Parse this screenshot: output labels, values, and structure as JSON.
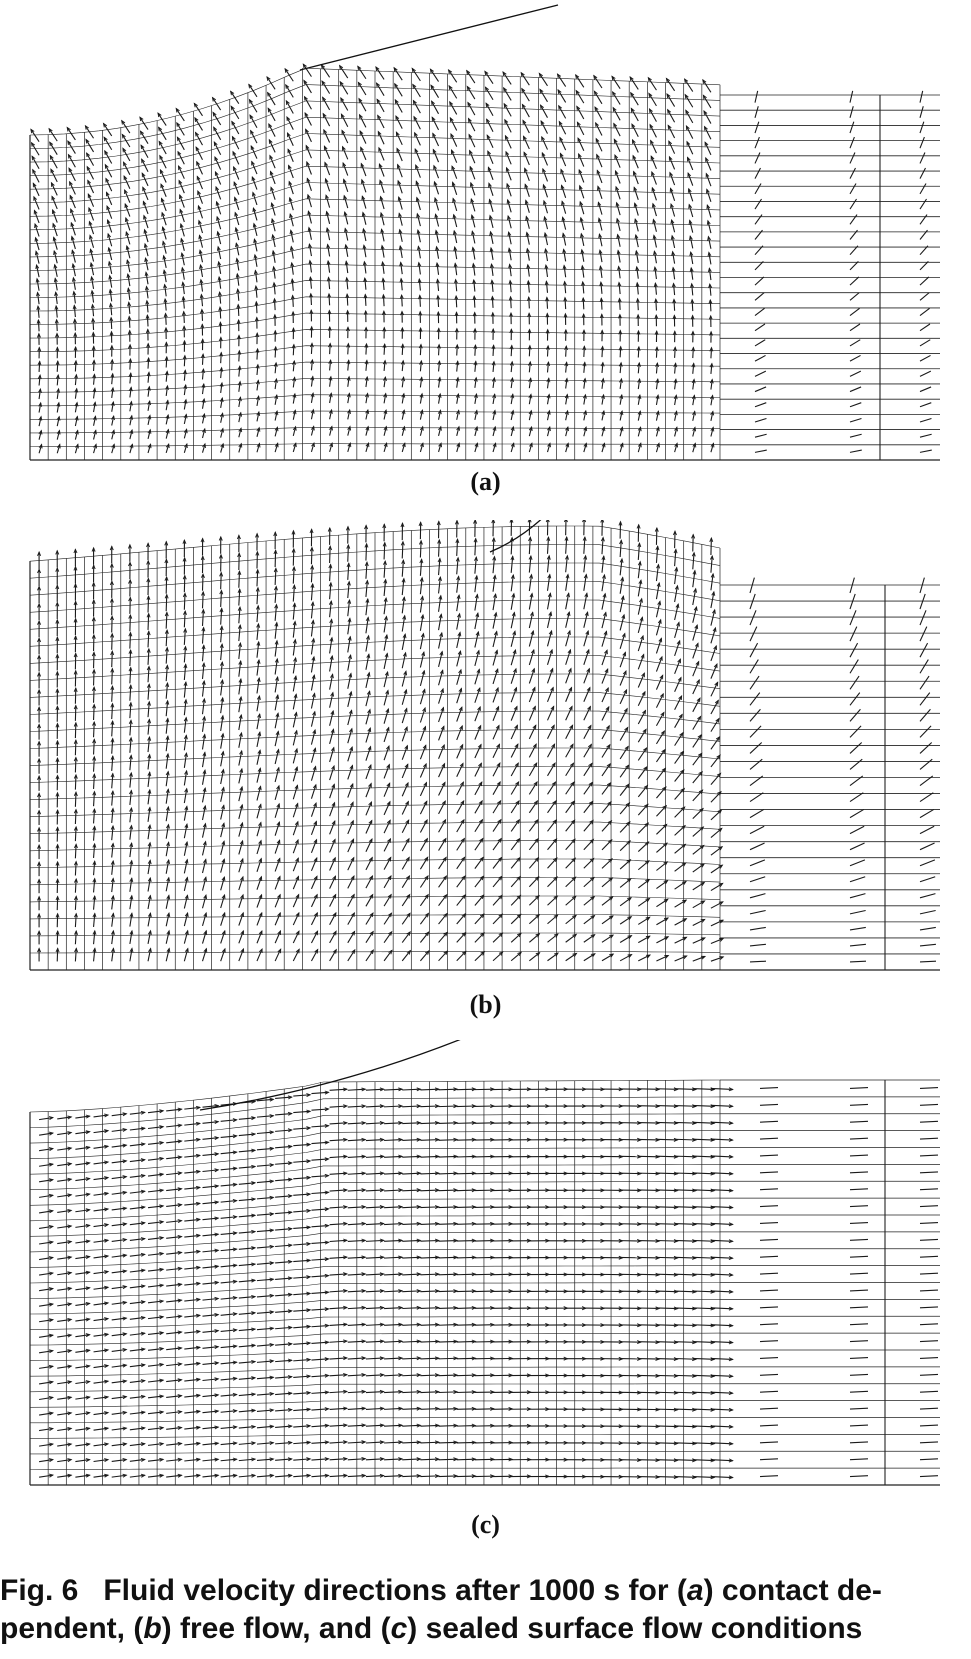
{
  "figure": {
    "panels": [
      {
        "id": "a",
        "label": "(a)",
        "flow_condition": "contact dependent"
      },
      {
        "id": "b",
        "label": "(b)",
        "flow_condition": "free flow"
      },
      {
        "id": "c",
        "label": "(c)",
        "flow_condition": "sealed surface"
      }
    ],
    "caption": {
      "fig_number": "Fig. 6",
      "line1_text": "Fluid velocity directions after 1000 s for (",
      "line1_a": "a",
      "line1_tail": ") contact de-",
      "line2_pre": "pendent, (",
      "line2_b": "b",
      "line2_mid": ") free flow, and (",
      "line2_c": "c",
      "line2_tail": ") sealed surface flow conditions"
    },
    "colors": {
      "ink": "#111111",
      "mesh": "#222222",
      "arrows": "#1a1a1a",
      "background": "#ffffff"
    }
  }
}
